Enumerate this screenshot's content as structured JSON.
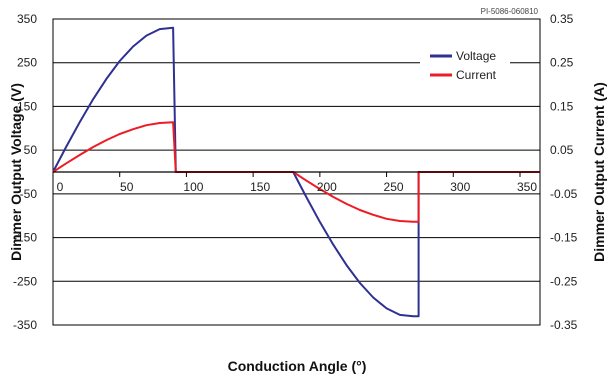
{
  "chart_data": {
    "type": "line",
    "title": "",
    "reference_code": "PI-5086-060810",
    "xlabel": "Conduction Angle (°)",
    "ylabel_left": "Dimmer Output Voltage (V)",
    "ylabel_right": "Dimmer Output Current (A)",
    "xlim": [
      0,
      365
    ],
    "ylim_left": [
      -350,
      350
    ],
    "ylim_right": [
      -0.35,
      0.35
    ],
    "x_ticks": [
      0,
      50,
      100,
      150,
      200,
      250,
      300,
      350
    ],
    "x_tick_labels": [
      "0",
      "50",
      "100",
      "150",
      "200",
      "250",
      "300",
      "350"
    ],
    "y_left_ticks": [
      350,
      250,
      150,
      50,
      -50,
      -150,
      -250,
      -350
    ],
    "y_left_tick_labels": [
      "350",
      "250",
      "150",
      "50",
      "-50",
      "-150",
      "-250",
      "-350"
    ],
    "y_right_ticks": [
      0.35,
      0.25,
      0.15,
      0.05,
      -0.05,
      -0.15,
      -0.25,
      -0.35
    ],
    "y_right_tick_labels": [
      "0.35",
      "0.25",
      "0.15",
      "0.05",
      "-0.05",
      "-0.15",
      "-0.25",
      "-0.35"
    ],
    "grid": "horizontal",
    "legend_position": "top-right",
    "series": [
      {
        "name": "Voltage",
        "axis": "left",
        "color": "#2e3192",
        "x": [
          0,
          10,
          20,
          30,
          40,
          50,
          60,
          70,
          80,
          90,
          90,
          92,
          180,
          190,
          200,
          210,
          220,
          230,
          240,
          250,
          260,
          270,
          274,
          274,
          276,
          365
        ],
        "y": [
          0,
          58,
          114,
          166,
          213,
          254,
          287,
          312,
          327,
          330,
          330,
          0,
          0,
          -58,
          -114,
          -166,
          -213,
          -254,
          -287,
          -312,
          -327,
          -330,
          -330,
          0,
          0,
          0
        ]
      },
      {
        "name": "Current",
        "axis": "right",
        "color": "#ed1c24",
        "x": [
          0,
          10,
          20,
          30,
          40,
          50,
          60,
          70,
          80,
          90,
          92,
          180,
          190,
          200,
          210,
          220,
          230,
          240,
          250,
          260,
          270,
          274,
          274,
          276,
          365
        ],
        "y": [
          0,
          0.02,
          0.039,
          0.057,
          0.073,
          0.087,
          0.098,
          0.107,
          0.112,
          0.114,
          0,
          0,
          -0.02,
          -0.039,
          -0.057,
          -0.073,
          -0.087,
          -0.098,
          -0.107,
          -0.112,
          -0.114,
          -0.114,
          0,
          0,
          0
        ]
      }
    ]
  }
}
